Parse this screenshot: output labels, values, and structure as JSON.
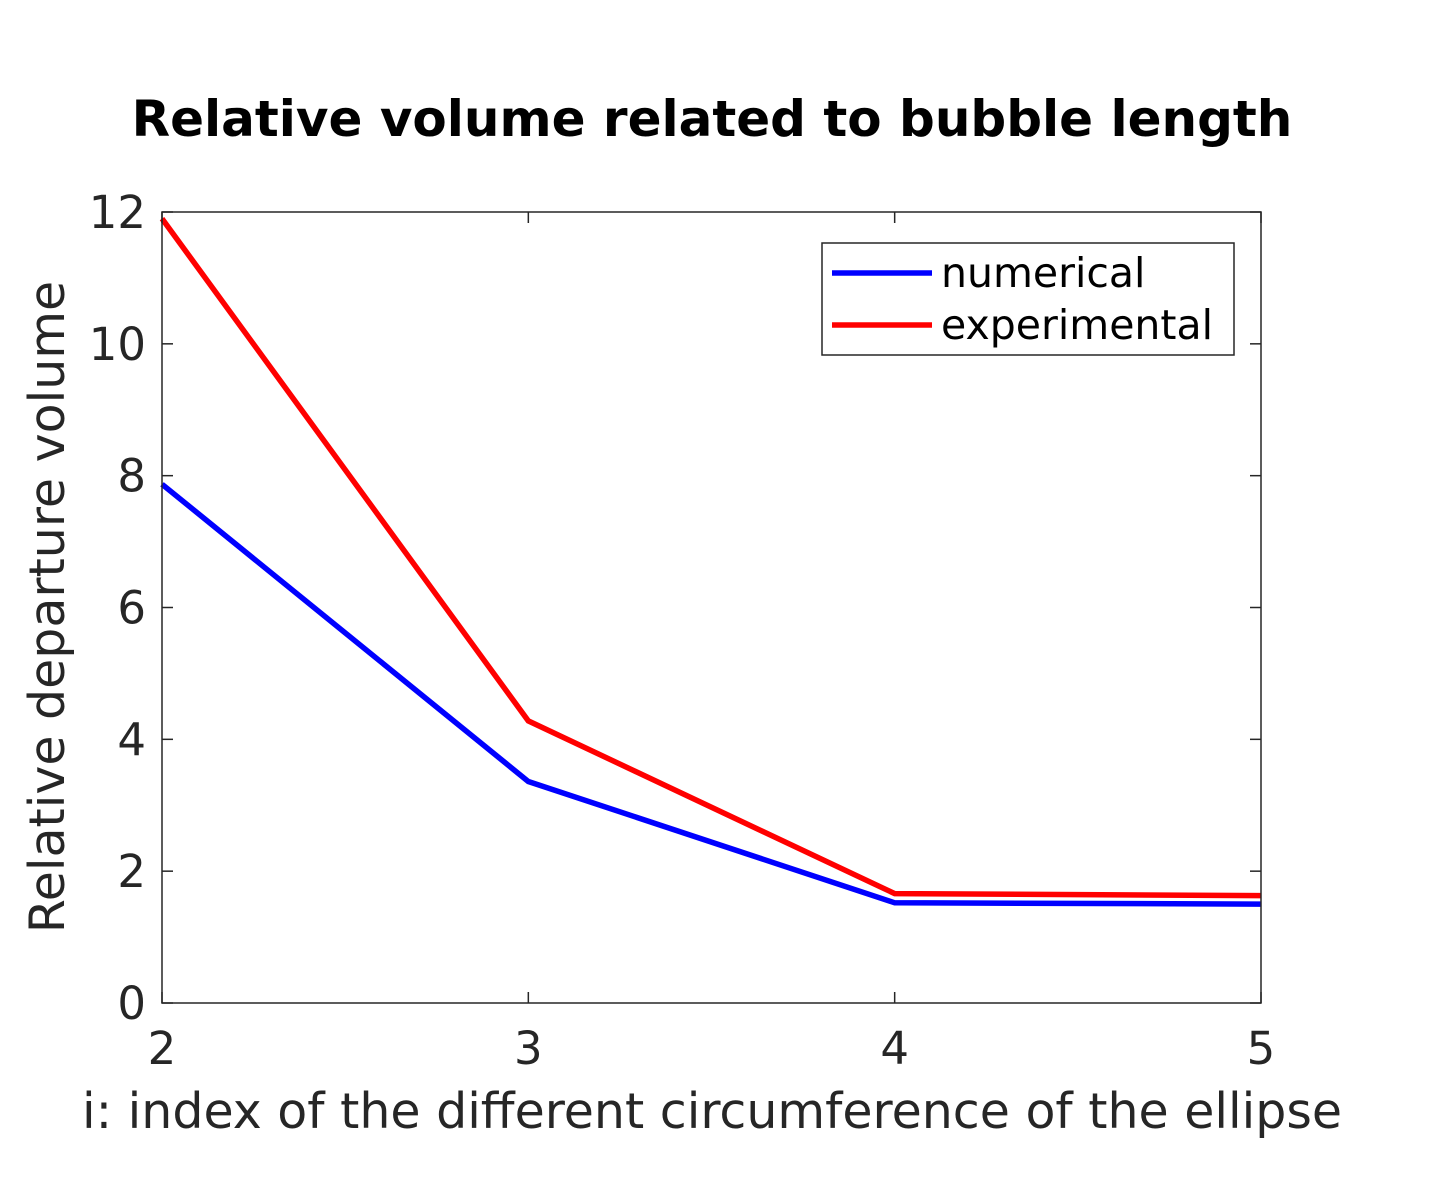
{
  "chart_data": {
    "type": "line",
    "title": "Relative volume related to bubble length",
    "xlabel": "i: index of the different circumference of the ellipse",
    "ylabel": "Relative departure volume",
    "x": [
      2,
      3,
      4,
      5
    ],
    "xlim": [
      2,
      5
    ],
    "ylim": [
      0,
      12
    ],
    "xticks": [
      2,
      3,
      4,
      5
    ],
    "yticks": [
      0,
      2,
      4,
      6,
      8,
      10,
      12
    ],
    "grid": false,
    "legend_location": "top-right",
    "series": [
      {
        "name": "numerical",
        "color": "#0000ff",
        "values": [
          7.87,
          3.36,
          1.52,
          1.5
        ]
      },
      {
        "name": "experimental",
        "color": "#ff0000",
        "values": [
          11.9,
          4.28,
          1.66,
          1.63
        ]
      }
    ]
  }
}
